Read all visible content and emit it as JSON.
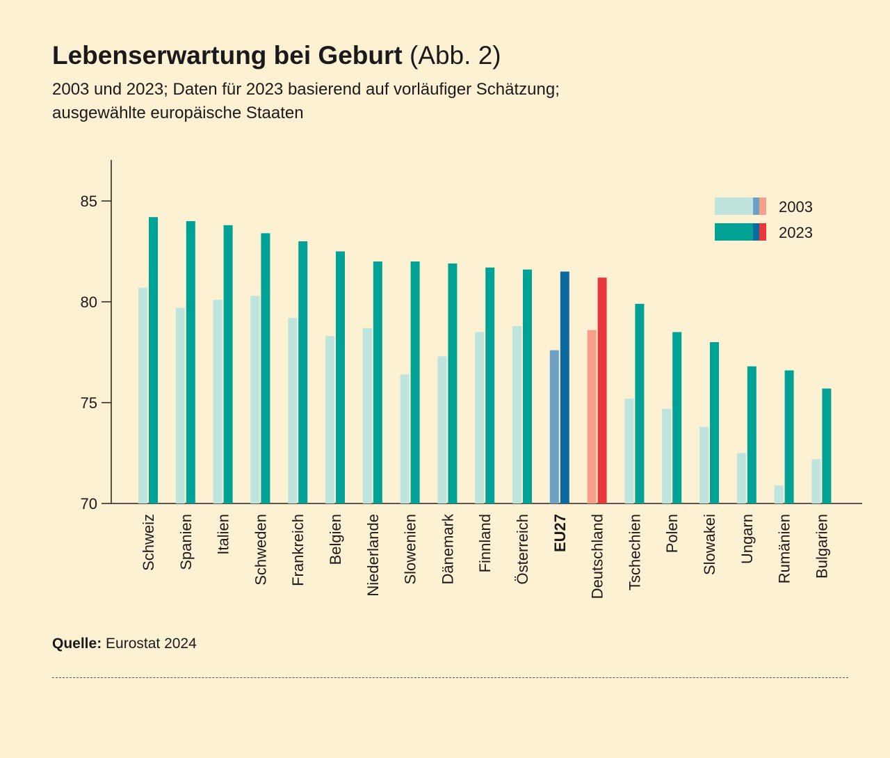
{
  "title": "Lebenserwartung bei Geburt",
  "title_suffix": "(Abb. 2)",
  "subtitle_line1": "2003 und 2023; Daten für 2023 basierend auf vorläufiger Schätzung;",
  "subtitle_line2": "ausgewählte europäische Staaten",
  "source_label": "Quelle:",
  "source_text": "Eurostat 2024",
  "colors": {
    "background": "#fdf1d3",
    "c2003": "#bfe4de",
    "c2023": "#00a295",
    "eu2003": "#6fa1c4",
    "eu2023": "#0b6aa0",
    "de2003": "#f4a08b",
    "de2023": "#e8383b"
  },
  "chart_data": {
    "type": "bar",
    "title": "Lebenserwartung bei Geburt",
    "xlabel": "",
    "ylabel": "",
    "ylim": [
      70,
      87
    ],
    "yticks": [
      70,
      75,
      80,
      85
    ],
    "legend_position": "top-right",
    "categories": [
      "Schweiz",
      "Spanien",
      "Italien",
      "Schweden",
      "Frankreich",
      "Belgien",
      "Niederlande",
      "Slowenien",
      "Dänemark",
      "Finnland",
      "Österreich",
      "EU27",
      "Deutschland",
      "Tschechien",
      "Polen",
      "Slowakei",
      "Ungarn",
      "Rumänien",
      "Bulgarien"
    ],
    "highlight": {
      "EU27": "eu",
      "Deutschland": "de"
    },
    "bold_categories": [
      "EU27"
    ],
    "series": [
      {
        "name": "2003",
        "values": [
          80.7,
          79.7,
          80.1,
          80.3,
          79.2,
          78.3,
          78.7,
          76.4,
          77.3,
          78.5,
          78.8,
          77.6,
          78.6,
          75.2,
          74.7,
          73.8,
          72.5,
          70.9,
          72.2
        ]
      },
      {
        "name": "2023",
        "values": [
          84.2,
          84.0,
          83.8,
          83.4,
          83.0,
          82.5,
          82.0,
          82.0,
          81.9,
          81.7,
          81.6,
          81.5,
          81.2,
          79.9,
          78.5,
          78.0,
          76.8,
          76.6,
          75.7
        ]
      }
    ]
  }
}
